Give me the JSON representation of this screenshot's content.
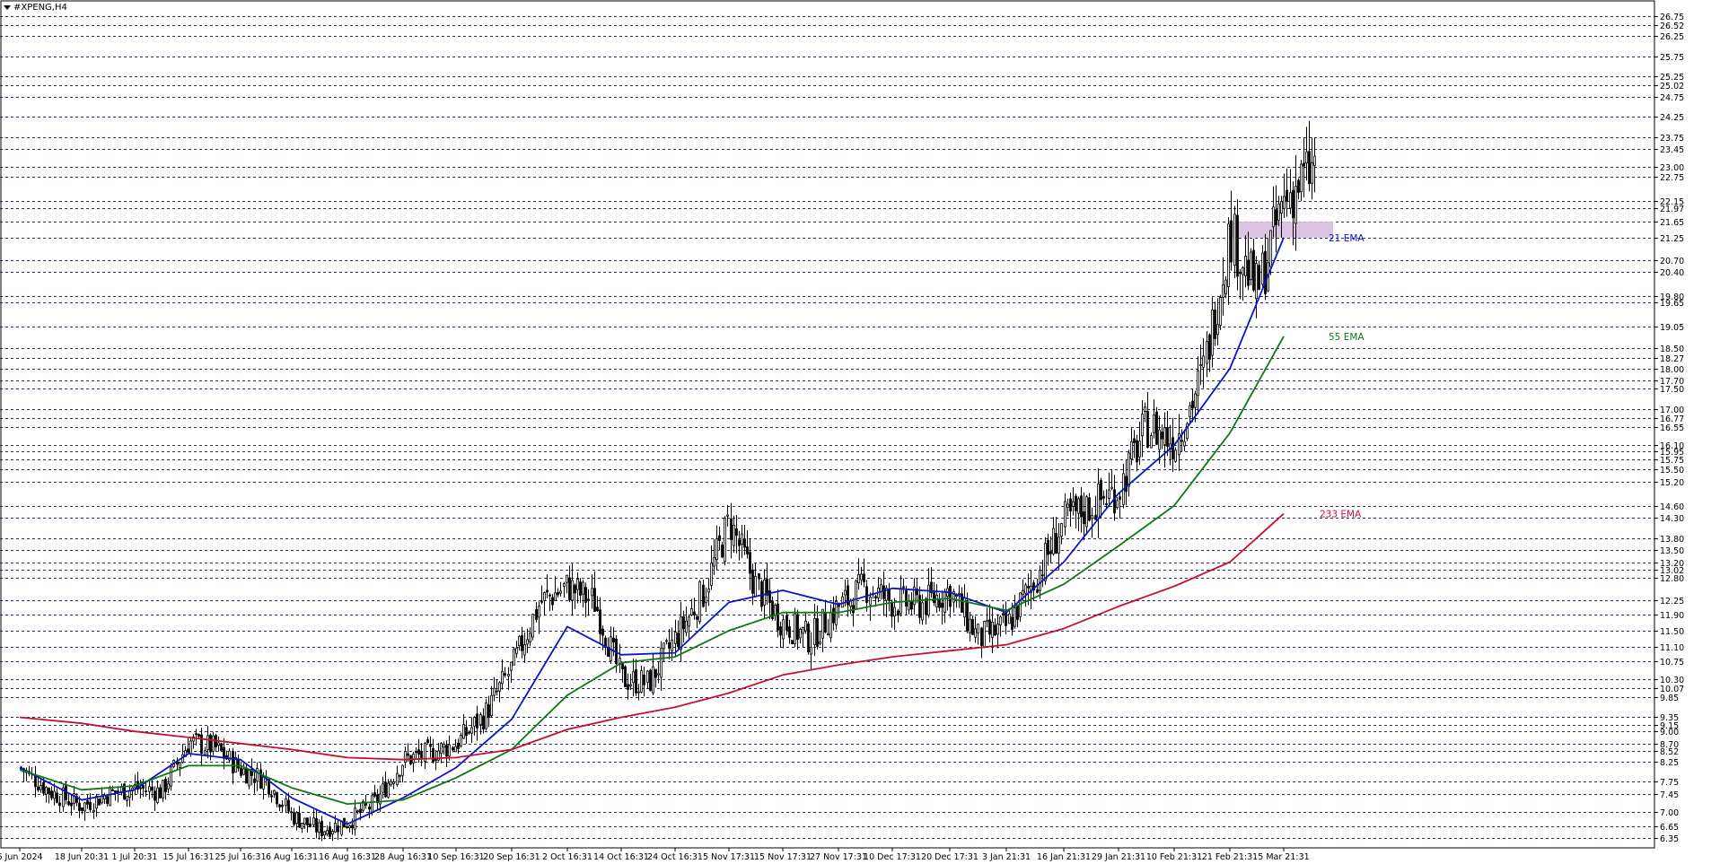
{
  "window": {
    "title": "#XPENG,H4"
  },
  "chart_data": {
    "type": "candlestick",
    "symbol": "#XPENG",
    "timeframe": "H4",
    "grid": true,
    "ylim": [
      6.2,
      26.9
    ],
    "price_ticks": [
      26.75,
      26.52,
      26.25,
      25.75,
      25.25,
      25.02,
      24.75,
      24.25,
      23.75,
      23.45,
      23.0,
      22.75,
      22.15,
      21.97,
      21.65,
      21.25,
      20.7,
      20.4,
      19.8,
      19.65,
      19.05,
      18.5,
      18.27,
      18.0,
      17.7,
      17.5,
      17.0,
      16.77,
      16.55,
      16.1,
      15.95,
      15.75,
      15.5,
      15.2,
      14.6,
      14.3,
      13.8,
      13.5,
      13.2,
      13.02,
      12.8,
      12.25,
      11.9,
      11.5,
      11.1,
      10.75,
      10.3,
      10.07,
      9.85,
      9.35,
      9.15,
      9.0,
      8.7,
      8.52,
      8.25,
      7.75,
      7.45,
      7.0,
      6.65,
      6.35
    ],
    "date_ticks": [
      "6 Jun 2024",
      "18 Jun 20:31",
      "1 Jul 20:31",
      "15 Jul 16:31",
      "25 Jul 16:31",
      "6 Aug 16:31",
      "16 Aug 16:31",
      "28 Aug 16:31",
      "10 Sep 16:31",
      "20 Sep 16:31",
      "2 Oct 16:31",
      "14 Oct 16:31",
      "24 Oct 16:31",
      "5 Nov 17:31",
      "15 Nov 17:31",
      "27 Nov 17:31",
      "10 Dec 17:31",
      "20 Dec 17:31",
      "3 Jan 21:31",
      "16 Jan 21:31",
      "29 Jan 21:31",
      "10 Feb 21:31",
      "21 Feb 21:31",
      "5 Mar 21:31"
    ],
    "price_path": [
      {
        "date": "6 Jun 2024",
        "price": 8.1
      },
      {
        "date": "12 Jun",
        "price": 7.5
      },
      {
        "date": "18 Jun 20:31",
        "price": 7.15
      },
      {
        "date": "25 Jun",
        "price": 7.45
      },
      {
        "date": "1 Jul 20:31",
        "price": 7.6
      },
      {
        "date": "8 Jul",
        "price": 7.5
      },
      {
        "date": "15 Jul 16:31",
        "price": 8.75
      },
      {
        "date": "20 Jul",
        "price": 8.6
      },
      {
        "date": "25 Jul 16:31",
        "price": 8.05
      },
      {
        "date": "1 Aug",
        "price": 7.8
      },
      {
        "date": "6 Aug 16:31",
        "price": 6.9
      },
      {
        "date": "11 Aug",
        "price": 6.55
      },
      {
        "date": "16 Aug 16:31",
        "price": 6.75
      },
      {
        "date": "22 Aug",
        "price": 7.25
      },
      {
        "date": "28 Aug 16:31",
        "price": 8.3
      },
      {
        "date": "4 Sep",
        "price": 8.45
      },
      {
        "date": "10 Sep 16:31",
        "price": 8.7
      },
      {
        "date": "15 Sep",
        "price": 9.4
      },
      {
        "date": "20 Sep 16:31",
        "price": 10.6
      },
      {
        "date": "26 Sep",
        "price": 12.2
      },
      {
        "date": "2 Oct 16:31",
        "price": 12.6
      },
      {
        "date": "8 Oct",
        "price": 12.2
      },
      {
        "date": "14 Oct 16:31",
        "price": 10.3
      },
      {
        "date": "19 Oct",
        "price": 10.2
      },
      {
        "date": "24 Oct 16:31",
        "price": 11.3
      },
      {
        "date": "30 Oct",
        "price": 12.4
      },
      {
        "date": "5 Nov 17:31",
        "price": 14.2
      },
      {
        "date": "10 Nov",
        "price": 12.6
      },
      {
        "date": "15 Nov 17:31",
        "price": 11.7
      },
      {
        "date": "21 Nov",
        "price": 11.3
      },
      {
        "date": "27 Nov 17:31",
        "price": 12.1
      },
      {
        "date": "4 Dec",
        "price": 12.6
      },
      {
        "date": "10 Dec 17:31",
        "price": 12.2
      },
      {
        "date": "15 Dec",
        "price": 12.15
      },
      {
        "date": "20 Dec 17:31",
        "price": 12.5
      },
      {
        "date": "27 Dec",
        "price": 11.3
      },
      {
        "date": "3 Jan 21:31",
        "price": 11.6
      },
      {
        "date": "9 Jan",
        "price": 12.8
      },
      {
        "date": "16 Jan 21:31",
        "price": 14.2
      },
      {
        "date": "22 Jan",
        "price": 14.6
      },
      {
        "date": "29 Jan 21:31",
        "price": 15.0
      },
      {
        "date": "3 Feb",
        "price": 16.6
      },
      {
        "date": "10 Feb 21:31",
        "price": 16.2
      },
      {
        "date": "16 Feb",
        "price": 17.8
      },
      {
        "date": "21 Feb 21:31",
        "price": 21.4
      },
      {
        "date": "26 Feb",
        "price": 19.9
      },
      {
        "date": "5 Mar 21:31",
        "price": 22.2
      },
      {
        "date": "7 Mar",
        "price": 23.0
      }
    ],
    "indicators": [
      {
        "name": "21 EMA",
        "color": "#0a14c8",
        "path": [
          {
            "date": "6 Jun 2024",
            "price": 8.1
          },
          {
            "date": "18 Jun 20:31",
            "price": 7.3
          },
          {
            "date": "1 Jul 20:31",
            "price": 7.55
          },
          {
            "date": "15 Jul 16:31",
            "price": 8.45
          },
          {
            "date": "25 Jul 16:31",
            "price": 8.3
          },
          {
            "date": "6 Aug 16:31",
            "price": 7.35
          },
          {
            "date": "16 Aug 16:31",
            "price": 6.7
          },
          {
            "date": "28 Aug 16:31",
            "price": 7.35
          },
          {
            "date": "10 Sep 16:31",
            "price": 8.1
          },
          {
            "date": "20 Sep 16:31",
            "price": 9.3
          },
          {
            "date": "2 Oct 16:31",
            "price": 11.6
          },
          {
            "date": "14 Oct 16:31",
            "price": 10.9
          },
          {
            "date": "24 Oct 16:31",
            "price": 10.95
          },
          {
            "date": "5 Nov 17:31",
            "price": 12.2
          },
          {
            "date": "15 Nov 17:31",
            "price": 12.5
          },
          {
            "date": "27 Nov 17:31",
            "price": 12.15
          },
          {
            "date": "10 Dec 17:31",
            "price": 12.55
          },
          {
            "date": "20 Dec 17:31",
            "price": 12.45
          },
          {
            "date": "3 Jan 21:31",
            "price": 11.95
          },
          {
            "date": "16 Jan 21:31",
            "price": 13.2
          },
          {
            "date": "29 Jan 21:31",
            "price": 14.9
          },
          {
            "date": "10 Feb 21:31",
            "price": 16.1
          },
          {
            "date": "21 Feb 21:31",
            "price": 18.0
          },
          {
            "date": "5 Mar 21:31",
            "price": 21.25
          }
        ]
      },
      {
        "name": "55 EMA",
        "color": "#0a7a10",
        "path": [
          {
            "date": "6 Jun 2024",
            "price": 8.05
          },
          {
            "date": "18 Jun 20:31",
            "price": 7.55
          },
          {
            "date": "1 Jul 20:31",
            "price": 7.65
          },
          {
            "date": "15 Jul 16:31",
            "price": 8.15
          },
          {
            "date": "25 Jul 16:31",
            "price": 8.15
          },
          {
            "date": "6 Aug 16:31",
            "price": 7.6
          },
          {
            "date": "16 Aug 16:31",
            "price": 7.2
          },
          {
            "date": "28 Aug 16:31",
            "price": 7.3
          },
          {
            "date": "10 Sep 16:31",
            "price": 7.85
          },
          {
            "date": "20 Sep 16:31",
            "price": 8.55
          },
          {
            "date": "2 Oct 16:31",
            "price": 9.9
          },
          {
            "date": "14 Oct 16:31",
            "price": 10.7
          },
          {
            "date": "24 Oct 16:31",
            "price": 10.85
          },
          {
            "date": "5 Nov 17:31",
            "price": 11.5
          },
          {
            "date": "15 Nov 17:31",
            "price": 11.95
          },
          {
            "date": "27 Nov 17:31",
            "price": 11.95
          },
          {
            "date": "10 Dec 17:31",
            "price": 12.2
          },
          {
            "date": "20 Dec 17:31",
            "price": 12.3
          },
          {
            "date": "3 Jan 21:31",
            "price": 12.0
          },
          {
            "date": "16 Jan 21:31",
            "price": 12.65
          },
          {
            "date": "29 Jan 21:31",
            "price": 13.6
          },
          {
            "date": "10 Feb 21:31",
            "price": 14.6
          },
          {
            "date": "21 Feb 21:31",
            "price": 16.4
          },
          {
            "date": "5 Mar 21:31",
            "price": 18.8
          }
        ]
      },
      {
        "name": "233 EMA",
        "color": "#c8102e",
        "path": [
          {
            "date": "6 Jun 2024",
            "price": 9.35
          },
          {
            "date": "18 Jun 20:31",
            "price": 9.2
          },
          {
            "date": "1 Jul 20:31",
            "price": 9.0
          },
          {
            "date": "15 Jul 16:31",
            "price": 8.85
          },
          {
            "date": "25 Jul 16:31",
            "price": 8.7
          },
          {
            "date": "6 Aug 16:31",
            "price": 8.55
          },
          {
            "date": "16 Aug 16:31",
            "price": 8.35
          },
          {
            "date": "28 Aug 16:31",
            "price": 8.3
          },
          {
            "date": "10 Sep 16:31",
            "price": 8.35
          },
          {
            "date": "20 Sep 16:31",
            "price": 8.55
          },
          {
            "date": "2 Oct 16:31",
            "price": 9.05
          },
          {
            "date": "14 Oct 16:31",
            "price": 9.35
          },
          {
            "date": "24 Oct 16:31",
            "price": 9.6
          },
          {
            "date": "5 Nov 17:31",
            "price": 9.95
          },
          {
            "date": "15 Nov 17:31",
            "price": 10.4
          },
          {
            "date": "27 Nov 17:31",
            "price": 10.65
          },
          {
            "date": "10 Dec 17:31",
            "price": 10.85
          },
          {
            "date": "20 Dec 17:31",
            "price": 11.0
          },
          {
            "date": "3 Jan 21:31",
            "price": 11.15
          },
          {
            "date": "16 Jan 21:31",
            "price": 11.55
          },
          {
            "date": "29 Jan 21:31",
            "price": 12.1
          },
          {
            "date": "10 Feb 21:31",
            "price": 12.6
          },
          {
            "date": "21 Feb 21:31",
            "price": 13.2
          },
          {
            "date": "5 Mar 21:31",
            "price": 14.4
          }
        ]
      }
    ],
    "zone": {
      "date_from": "21 Feb 21:31",
      "date_to": "7 Mar",
      "price_from": 21.25,
      "price_to": 21.65,
      "color": "#d6bedd"
    }
  }
}
